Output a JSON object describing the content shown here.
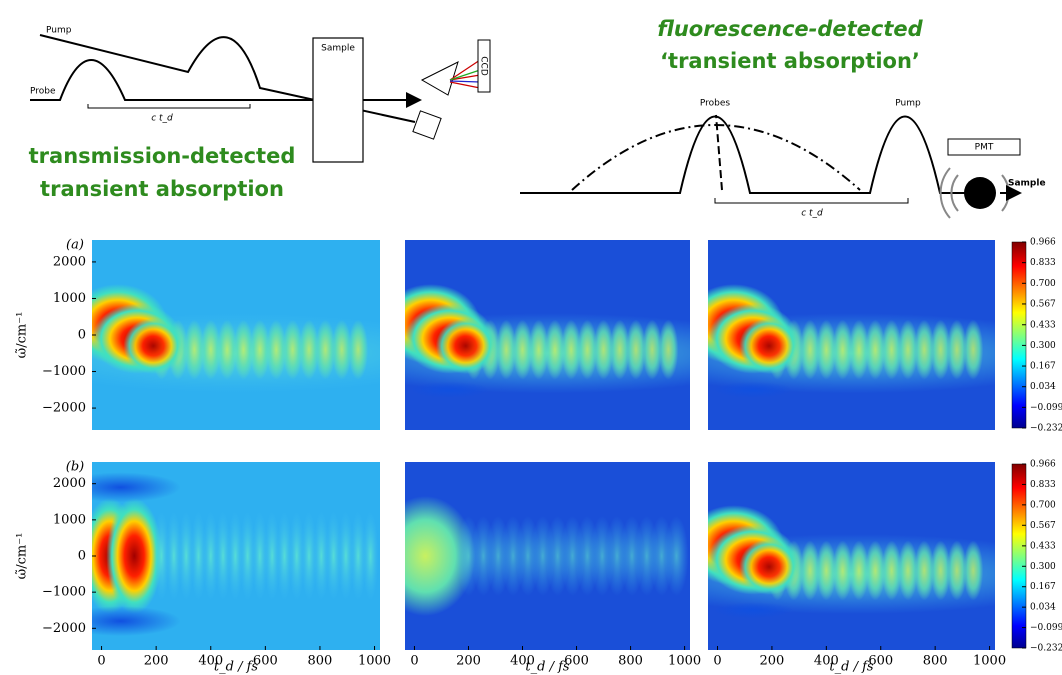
{
  "diagrams": {
    "left": {
      "pump": "Pump",
      "probe": "Probe",
      "sample": "Sample",
      "detector": "CCD",
      "delay": "c t_d",
      "caption_1": "transmission-detected",
      "caption_2": "transient absorption"
    },
    "right": {
      "title_1": "fluorescence-detected",
      "title_2": "‘transient absorption’",
      "probes": "Probes",
      "pump": "Pump",
      "detector": "PMT",
      "sample": "Sample",
      "delay": "c t_d"
    }
  },
  "figure": {
    "row_labels": [
      "(a)",
      "(b)"
    ],
    "ylabel": "ω̃/cm⁻¹",
    "xlabel": "t_d / fs",
    "xlim": [
      -35,
      1020
    ],
    "xticks": [
      0,
      200,
      400,
      600,
      800,
      1000
    ],
    "ylim": [
      -2600,
      2600
    ],
    "yticks": [
      {
        "value": -2000,
        "label": "−2000"
      },
      {
        "value": -1000,
        "label": "−1000"
      },
      0,
      1000,
      2000
    ],
    "colorbar": {
      "lim": [
        -0.232,
        0.966
      ],
      "ticks": [
        0.966,
        0.833,
        {
          "value": 0.7,
          "label": "0.700"
        },
        0.567,
        0.433,
        {
          "value": 0.3,
          "label": "0.300"
        },
        0.167,
        0.034,
        {
          "value": -0.099,
          "label": "−0.099"
        },
        {
          "value": -0.232,
          "label": "−0.232"
        }
      ]
    }
  }
}
